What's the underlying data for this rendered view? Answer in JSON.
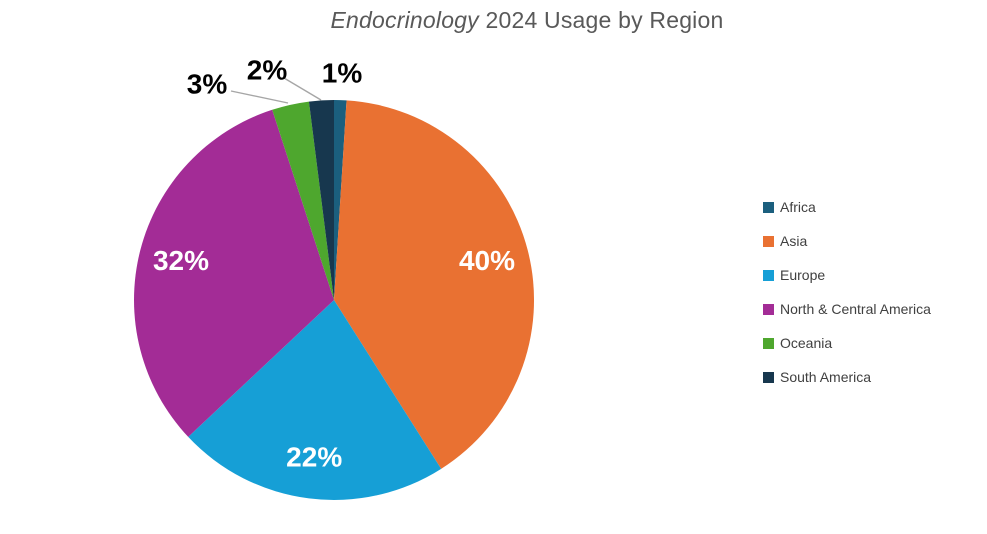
{
  "title": {
    "italic": "Endocrinology",
    "rest": " 2024 Usage by Region",
    "color": "#595959"
  },
  "chart_data": {
    "type": "pie",
    "title": "Endocrinology 2024 Usage by Region",
    "title_italic_segment": "Endocrinology",
    "start_angle_deg": 0,
    "direction": "clockwise",
    "slices": [
      {
        "label": "Africa",
        "value_pct": 1,
        "data_label": "1%",
        "color": "#1B5F7E",
        "label_placement": "outside"
      },
      {
        "label": "Asia",
        "value_pct": 40,
        "data_label": "40%",
        "color": "#E97132",
        "label_placement": "inside"
      },
      {
        "label": "Europe",
        "value_pct": 22,
        "data_label": "22%",
        "color": "#169FD6",
        "label_placement": "inside"
      },
      {
        "label": "North & Central America",
        "value_pct": 32,
        "data_label": "32%",
        "color": "#A32C96",
        "label_placement": "inside"
      },
      {
        "label": "Oceania",
        "value_pct": 3,
        "data_label": "3%",
        "color": "#4EA72E",
        "label_placement": "outside"
      },
      {
        "label": "South America",
        "value_pct": 2,
        "data_label": "2%",
        "color": "#17374E",
        "label_placement": "outside"
      }
    ],
    "legend": {
      "position": "right",
      "items": [
        "Africa",
        "Asia",
        "Europe",
        "North & Central America",
        "Oceania",
        "South America"
      ]
    },
    "inside_label_color": "#FFFFFF",
    "outside_label_color": "#000000",
    "leader_line_color": "#A6A6A6"
  }
}
